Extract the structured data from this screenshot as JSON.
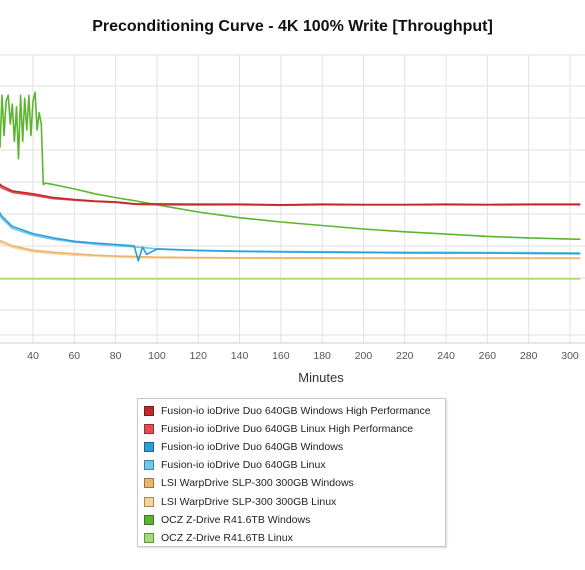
{
  "chart_data": {
    "type": "line",
    "title": "Preconditioning Curve - 4K 100% Write [Throughput]",
    "xlabel": "Minutes",
    "ylabel": "",
    "xlim": [
      20,
      305
    ],
    "ylim": [
      0,
      100
    ],
    "x_ticks": [
      40,
      60,
      80,
      100,
      120,
      140,
      160,
      180,
      200,
      220,
      240,
      260,
      280,
      300
    ],
    "grid": true,
    "legend_position": "bottom-center",
    "series": [
      {
        "name": "Fusion-io ioDrive Duo 640GB Windows High Performance",
        "color": "#c0282d",
        "x": [
          20,
          25,
          30,
          40,
          50,
          60,
          70,
          80,
          90,
          100,
          120,
          140,
          160,
          180,
          200,
          220,
          240,
          260,
          280,
          305
        ],
        "y": [
          57.5,
          54.5,
          52.8,
          51.8,
          50.5,
          49.8,
          49.3,
          49.0,
          48.3,
          48.3,
          48.2,
          48.2,
          48.0,
          48.2,
          48.1,
          48.1,
          48.2,
          48.1,
          48.2,
          48.2
        ]
      },
      {
        "name": "Fusion-io ioDrive Duo 640GB Linux High Performance",
        "color": "#e44c50",
        "x": [
          20,
          25,
          30,
          40,
          50,
          60,
          70,
          80,
          90,
          100,
          120,
          140,
          160,
          180,
          200,
          220,
          240,
          260,
          280,
          305
        ],
        "y": [
          57.0,
          53.8,
          52.3,
          51.3,
          50.1,
          49.6,
          49.1,
          48.8,
          48.1,
          48.0,
          47.9,
          48.0,
          47.8,
          48.0,
          47.9,
          47.9,
          48.0,
          47.9,
          48.0,
          48.0
        ]
      },
      {
        "name": "Fusion-io ioDrive Duo 640GB Windows",
        "color": "#2a9fd8",
        "x": [
          20,
          25,
          30,
          40,
          50,
          60,
          70,
          80,
          89,
          91,
          93,
          95,
          100,
          120,
          140,
          160,
          180,
          200,
          220,
          240,
          260,
          280,
          305
        ],
        "y": [
          49.5,
          44.0,
          40.5,
          38.0,
          36.5,
          35.3,
          34.7,
          34.2,
          33.7,
          28.5,
          33.3,
          30.8,
          32.6,
          32.1,
          31.8,
          31.6,
          31.5,
          31.4,
          31.3,
          31.2,
          31.2,
          31.1,
          31.0
        ]
      },
      {
        "name": "Fusion-io ioDrive Duo 640GB Linux",
        "color": "#6cc8ef",
        "x": [
          20,
          25,
          30,
          40,
          50,
          60,
          70,
          80,
          90,
          100,
          120,
          140,
          160,
          180,
          200,
          220,
          240,
          260,
          280,
          305
        ],
        "y": [
          48.8,
          43.2,
          39.8,
          37.4,
          36.0,
          35.0,
          34.3,
          33.8,
          33.3,
          32.7,
          32.2,
          31.9,
          31.8,
          31.7,
          31.6,
          31.5,
          31.5,
          31.4,
          31.4,
          31.3
        ]
      },
      {
        "name": "LSI WarpDrive SLP-300 300GB Windows",
        "color": "#eeb46e",
        "x": [
          20,
          25,
          30,
          40,
          50,
          60,
          70,
          80,
          90,
          100,
          120,
          140,
          160,
          180,
          200,
          220,
          240,
          260,
          280,
          305
        ],
        "y": [
          36.5,
          35.3,
          33.8,
          32.2,
          31.5,
          31.0,
          30.5,
          30.2,
          30.0,
          29.8,
          29.7,
          29.6,
          29.6,
          29.6,
          29.5,
          29.5,
          29.5,
          29.5,
          29.5,
          29.5
        ]
      },
      {
        "name": "LSI WarpDrive SLP-300 300GB Linux",
        "color": "#f5d49a",
        "x": [
          20,
          25,
          30,
          40,
          50,
          60,
          70,
          80,
          90,
          100,
          120,
          140,
          160,
          180,
          200,
          220,
          240,
          260,
          280,
          305
        ],
        "y": [
          35.8,
          34.6,
          33.2,
          31.7,
          31.0,
          30.5,
          30.2,
          29.9,
          29.7,
          29.5,
          29.4,
          29.4,
          29.3,
          29.3,
          29.3,
          29.3,
          29.3,
          29.3,
          29.3,
          29.3
        ]
      },
      {
        "name": "OCZ Z-Drive R41.6TB Windows",
        "color": "#5cb531",
        "x": [
          20,
          21,
          22,
          23,
          24,
          25,
          26,
          27,
          28,
          29,
          30,
          31,
          32,
          33,
          34,
          35,
          36,
          37,
          38,
          39,
          40,
          41,
          42,
          43,
          44,
          45,
          46,
          50,
          60,
          70,
          80,
          90,
          100,
          120,
          140,
          160,
          180,
          200,
          220,
          240,
          260,
          280,
          305
        ],
        "y": [
          85.0,
          82.0,
          72.0,
          82.0,
          68.0,
          86.0,
          72.0,
          84.0,
          86.0,
          76.0,
          83.0,
          70.0,
          82.0,
          64.0,
          86.0,
          70.0,
          85.0,
          74.0,
          86.0,
          72.0,
          84.0,
          87.0,
          74.0,
          80.0,
          76.0,
          55.0,
          55.5,
          55.0,
          53.5,
          51.8,
          50.5,
          49.3,
          48.0,
          45.5,
          43.5,
          42.0,
          40.8,
          39.6,
          38.6,
          37.8,
          37.0,
          36.5,
          36.0
        ]
      },
      {
        "name": "OCZ Z-Drive R41.6TB Linux",
        "color": "#a4dc74",
        "x": [
          20,
          305
        ],
        "y": [
          22.3,
          22.3
        ]
      }
    ]
  }
}
